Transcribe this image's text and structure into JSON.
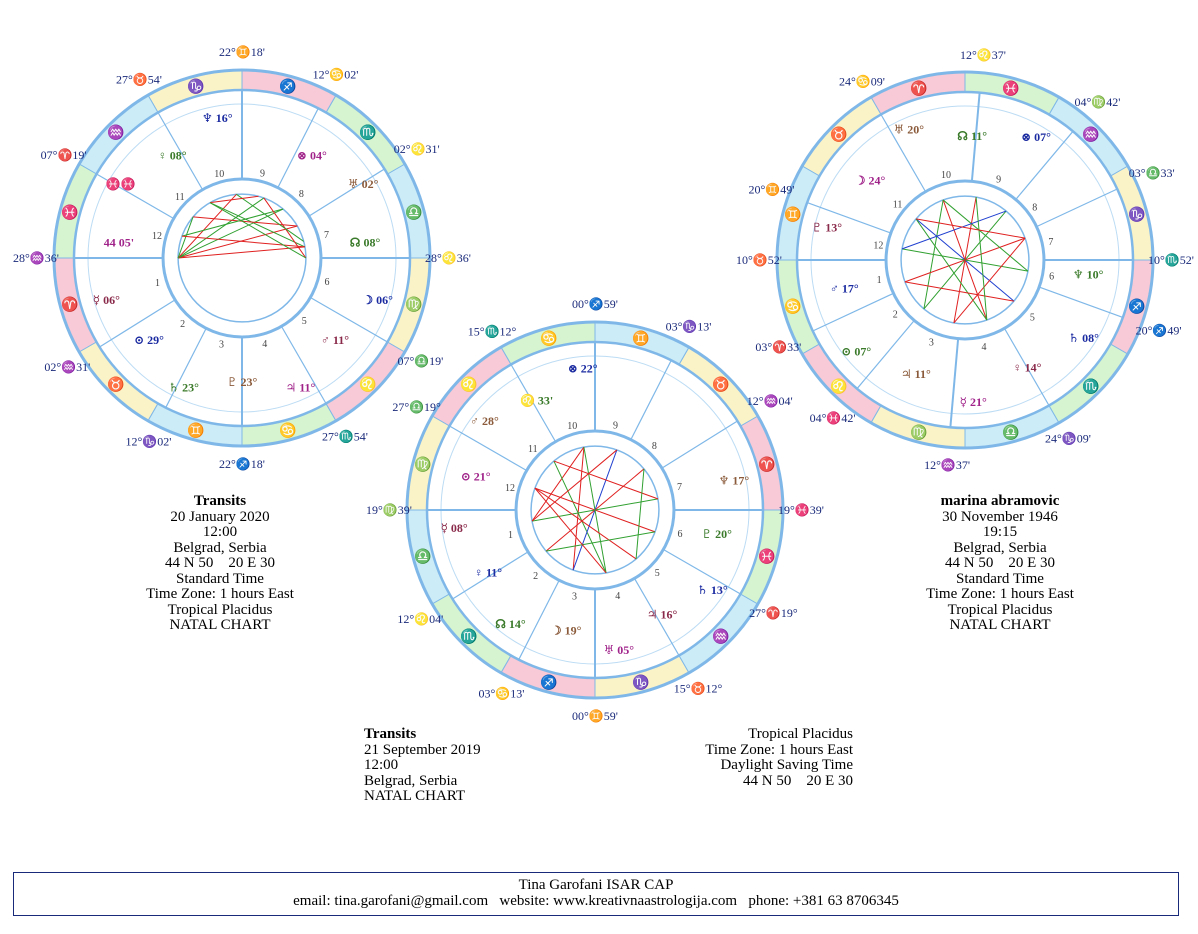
{
  "charts": [
    {
      "id": "left",
      "title": "Transits",
      "date": "20 January 2020",
      "time": "12:00",
      "place": "Belgrad, Serbia",
      "coords": "44 N 50    20 E 30",
      "time_type": "Standard Time",
      "time_zone": "Time Zone: 1 hours East",
      "house_system": "Tropical Placidus",
      "chart_type": "NATAL CHART",
      "cusp_labels": [
        "28°♒36'",
        "02°♒31'",
        "12°♑02'",
        "22°♐18'",
        "27°♏54'",
        "07°♎19'",
        "28°♌36'",
        "02°♌31'",
        "12°♋02'",
        "22°♊18'",
        "27°♉54'",
        "07°♈19'"
      ],
      "planet_labels": [
        "♆ 16°",
        "♀ 08°",
        "♓♓",
        "44 05'",
        "☿ 06°",
        "⊙ 29°",
        "♄ 23°",
        "♇ 23°",
        "♃ 11°",
        "♂ 11°",
        "☽ 06°",
        "☊ 08°",
        "♅ 02°",
        "⊗ 04°"
      ]
    },
    {
      "id": "middle",
      "title": "Transits",
      "date": "21 September 2019",
      "time": "12:00",
      "place": "Belgrad, Serbia",
      "chart_type": "NATAL CHART",
      "house_system": "Tropical Placidus",
      "time_zone": "Time Zone: 1 hours East",
      "time_type": "Daylight Saving Time",
      "coords": "44 N 50    20 E 30",
      "cusp_labels": [
        "19°♍39'",
        "12°♌04'",
        "03°♋13'",
        "00°♊59'",
        "15°♉12°",
        "27°♈19°",
        "19°♓39'",
        "12°♒04'",
        "03°♑13'",
        "00°♐59'",
        "15°♏12°",
        "27°♎19°"
      ],
      "planet_labels": [
        "⊗ 22°",
        "♌ 33'",
        "♂ 28°",
        "⊙ 21°",
        "☿ 08°",
        "♀ 11°",
        "☊ 14°",
        "☽ 19°",
        "♅ 05°",
        "♃ 16°",
        "♄ 13°",
        "♇ 20°",
        "♆ 17°"
      ]
    },
    {
      "id": "right",
      "title": "marina abramovic",
      "date": "30 November 1946",
      "time": "19:15",
      "place": "Belgrad, Serbia",
      "coords": "44 N 50    20 E 30",
      "time_type": "Standard Time",
      "time_zone": "Time Zone: 1 hours East",
      "house_system": "Tropical Placidus",
      "chart_type": "NATAL CHART",
      "cusp_labels": [
        "10°♉52'",
        "03°♈33'",
        "04°♓42'",
        "12°♒37'",
        "24°♑09'",
        "20°♐49'",
        "10°♏52'",
        "03°♎33'",
        "04°♍42'",
        "12°♌37'",
        "24°♋09'",
        "20°♊49'"
      ],
      "planet_labels": [
        "⊗ 07°",
        "☊ 11°",
        "♅ 20°",
        "☽ 24°",
        "♇ 13°",
        "♂ 17°",
        "⊙ 07°",
        "♃ 11°",
        "☿ 21°",
        "♀ 14°",
        "♄ 08°",
        "♆ 10°"
      ]
    }
  ],
  "footer": {
    "name": "Tina Garofani ISAR CAP",
    "contact": "email: tina.garofani@gmail.com   website: www.kreativnaastrologija.com   phone: +381 63 8706345"
  }
}
